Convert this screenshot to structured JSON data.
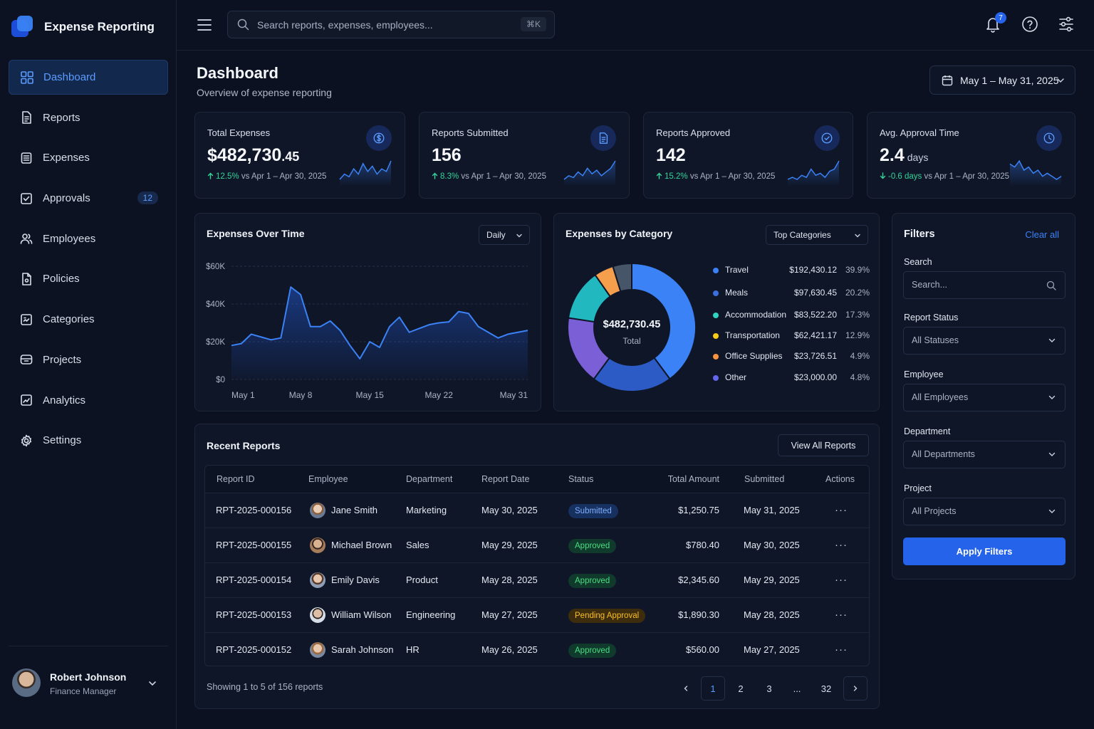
{
  "app": {
    "title": "Expense Reporting"
  },
  "nav": [
    {
      "label": "Dashboard",
      "icon": "grid-icon",
      "active": true
    },
    {
      "label": "Reports",
      "icon": "document-icon"
    },
    {
      "label": "Expenses",
      "icon": "receipt-icon"
    },
    {
      "label": "Approvals",
      "icon": "check-square-icon",
      "badge": "12"
    },
    {
      "label": "Employees",
      "icon": "users-icon"
    },
    {
      "label": "Policies",
      "icon": "file-icon"
    },
    {
      "label": "Categories",
      "icon": "tag-icon"
    },
    {
      "label": "Projects",
      "icon": "briefcase-icon"
    },
    {
      "label": "Analytics",
      "icon": "chart-icon"
    },
    {
      "label": "Settings",
      "icon": "gear-icon"
    }
  ],
  "user": {
    "name": "Robert Johnson",
    "role": "Finance Manager"
  },
  "topbar": {
    "search_placeholder": "Search reports, expenses, employees...",
    "shortcut": "⌘K",
    "notifications": "7"
  },
  "page": {
    "title": "Dashboard",
    "subtitle": "Overview of expense reporting",
    "date_range": "May 1 – May 31, 2025"
  },
  "kpis": [
    {
      "label": "Total Expenses",
      "value": "$482,730",
      "value_cents": ".45",
      "delta": "12.5%",
      "direction": "up",
      "compare": "vs Apr 1 – Apr 30, 2025",
      "icon": "dollar-icon",
      "spark": [
        3,
        5,
        4,
        7,
        5,
        9,
        6,
        8,
        5,
        7,
        6,
        10
      ]
    },
    {
      "label": "Reports Submitted",
      "value": "156",
      "delta": "8.3%",
      "direction": "up",
      "compare": "vs Apr 1 – Apr 30, 2025",
      "icon": "document-icon",
      "spark": [
        2,
        4,
        3,
        6,
        4,
        8,
        5,
        7,
        4,
        6,
        8,
        12
      ]
    },
    {
      "label": "Reports Approved",
      "value": "142",
      "delta": "15.2%",
      "direction": "up",
      "compare": "vs Apr 1 – Apr 30, 2025",
      "icon": "check-circle-icon",
      "spark": [
        2,
        3,
        2,
        4,
        3,
        7,
        4,
        5,
        3,
        6,
        7,
        11
      ]
    },
    {
      "label": "Avg. Approval Time",
      "value": "2.4",
      "unit": "days",
      "delta": "-0.6 days",
      "direction": "down",
      "compare": "vs Apr 1 – Apr 30, 2025",
      "icon": "clock-icon",
      "spark": [
        8,
        7,
        9,
        6,
        7,
        5,
        6,
        4,
        5,
        4,
        3,
        4
      ]
    }
  ],
  "expenses_over_time": {
    "title": "Expenses Over Time",
    "period": "Daily",
    "chart_data": {
      "type": "area",
      "x": [
        "May 1",
        "May 2",
        "May 3",
        "May 4",
        "May 5",
        "May 6",
        "May 7",
        "May 8",
        "May 9",
        "May 10",
        "May 11",
        "May 12",
        "May 13",
        "May 14",
        "May 15",
        "May 16",
        "May 17",
        "May 18",
        "May 19",
        "May 20",
        "May 21",
        "May 22",
        "May 23",
        "May 24",
        "May 25",
        "May 26",
        "May 27",
        "May 28",
        "May 29",
        "May 30",
        "May 31"
      ],
      "x_ticks": [
        "May 1",
        "May 8",
        "May 15",
        "May 22",
        "May 31"
      ],
      "values": [
        18000,
        19000,
        24000,
        22500,
        21000,
        22000,
        49000,
        45000,
        28000,
        28000,
        31000,
        26000,
        18000,
        11000,
        20000,
        17000,
        28000,
        33000,
        25000,
        27000,
        29000,
        30000,
        30500,
        36000,
        35000,
        28000,
        25000,
        22000,
        24000,
        25000,
        26000
      ],
      "y_ticks": [
        "$60K",
        "$40K",
        "$20K",
        "$0"
      ],
      "ylim": [
        0,
        60000
      ],
      "color": "#3b82f6"
    }
  },
  "expenses_by_category": {
    "title": "Expenses by Category",
    "filter": "Top Categories",
    "center_value": "$482,730.45",
    "center_label": "Total",
    "chart_data": {
      "type": "pie",
      "categories": [
        "Travel",
        "Meals",
        "Accommodation",
        "Transportation",
        "Office Supplies",
        "Other"
      ],
      "values": [
        192430.12,
        97630.45,
        83522.2,
        62421.17,
        23726.51,
        23000.0
      ],
      "labels": [
        "$192,430.12",
        "$97,630.45",
        "$83,522.20",
        "$62,421.17",
        "$23,726.51",
        "$23,000.00"
      ],
      "percents": [
        "39.9%",
        "20.2%",
        "17.3%",
        "12.9%",
        "4.9%",
        "4.8%"
      ],
      "legend_colors": [
        "#3b82f6",
        "#3b6fe0",
        "#2dd4bf",
        "#facc15",
        "#fb923c",
        "#6366f1"
      ],
      "slice_colors": [
        "#3b82f6",
        "#2d5bc6",
        "#7b5fd6",
        "#22b8c0",
        "#f59e4b",
        "#475569"
      ]
    }
  },
  "recent_reports": {
    "title": "Recent Reports",
    "view_all": "View All Reports",
    "columns": [
      "Report ID",
      "Employee",
      "Department",
      "Report Date",
      "Status",
      "Total Amount",
      "Submitted",
      "Actions"
    ],
    "rows": [
      {
        "id": "RPT-2025-000156",
        "employee": "Jane Smith",
        "department": "Marketing",
        "date": "May 30, 2025",
        "status": "Submitted",
        "status_kind": "submitted",
        "amount": "$1,250.75",
        "submitted": "May 31, 2025",
        "actions": "···"
      },
      {
        "id": "RPT-2025-000155",
        "employee": "Michael Brown",
        "department": "Sales",
        "date": "May 29, 2025",
        "status": "Approved",
        "status_kind": "approved",
        "amount": "$780.40",
        "submitted": "May 30, 2025",
        "actions": "···"
      },
      {
        "id": "RPT-2025-000154",
        "employee": "Emily Davis",
        "department": "Product",
        "date": "May 28, 2025",
        "status": "Approved",
        "status_kind": "approved",
        "amount": "$2,345.60",
        "submitted": "May 29, 2025",
        "actions": "···"
      },
      {
        "id": "RPT-2025-000153",
        "employee": "William Wilson",
        "department": "Engineering",
        "date": "May 27, 2025",
        "status": "Pending Approval",
        "status_kind": "pending",
        "amount": "$1,890.30",
        "submitted": "May 28, 2025",
        "actions": "···"
      },
      {
        "id": "RPT-2025-000152",
        "employee": "Sarah Johnson",
        "department": "HR",
        "date": "May 26, 2025",
        "status": "Approved",
        "status_kind": "approved",
        "amount": "$560.00",
        "submitted": "May 27, 2025",
        "actions": "···"
      }
    ],
    "showing": "Showing 1 to 5 of 156 reports",
    "pages": [
      "1",
      "2",
      "3",
      "...",
      "32"
    ],
    "current_page": "1"
  },
  "filters": {
    "title": "Filters",
    "clear": "Clear all",
    "search_label": "Search",
    "search_placeholder": "Search...",
    "status_label": "Report Status",
    "status_value": "All Statuses",
    "employee_label": "Employee",
    "employee_value": "All Employees",
    "department_label": "Department",
    "department_value": "All Departments",
    "project_label": "Project",
    "project_value": "All Projects",
    "apply": "Apply Filters"
  }
}
